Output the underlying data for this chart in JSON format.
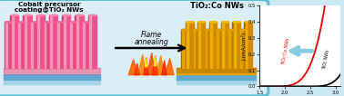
{
  "xlim": [
    1.5,
    3.1
  ],
  "ylim": [
    0.0,
    0.5
  ],
  "xticks": [
    1.5,
    2.0,
    2.5,
    3.0
  ],
  "yticks": [
    0.0,
    0.1,
    0.2,
    0.3,
    0.4,
    0.5
  ],
  "curve_red": {
    "onset": 1.72,
    "scale": 0.38,
    "exponent": 4.2,
    "color": "#ee0000",
    "label": "TiO₂:Co NWs"
  },
  "curve_black": {
    "onset": 2.42,
    "scale": 0.38,
    "exponent": 4.2,
    "color": "#000000",
    "label": "TiO₂ NWs"
  },
  "border_color": "#5abed4",
  "bg_color": "#cce8f4",
  "left_bg": "#daeef8",
  "nw_left_color": "#f0508a",
  "nw_left_highlight": "#f8a0c0",
  "nw_left_dark": "#d83070",
  "nw_right_color": "#d48a00",
  "nw_right_highlight": "#f0b800",
  "nw_right_dark": "#a06000",
  "substrate_blue1": "#90c4e0",
  "substrate_blue2": "#60a8d0",
  "substrate_blue3": "#a8d4e8",
  "substrate_gold1": "#e8a800",
  "substrate_gold2": "#c88800",
  "flame_colors": [
    "#ff8800",
    "#ff5500",
    "#ff2200",
    "#ffcc00"
  ],
  "arrow_color": "#88cce0"
}
